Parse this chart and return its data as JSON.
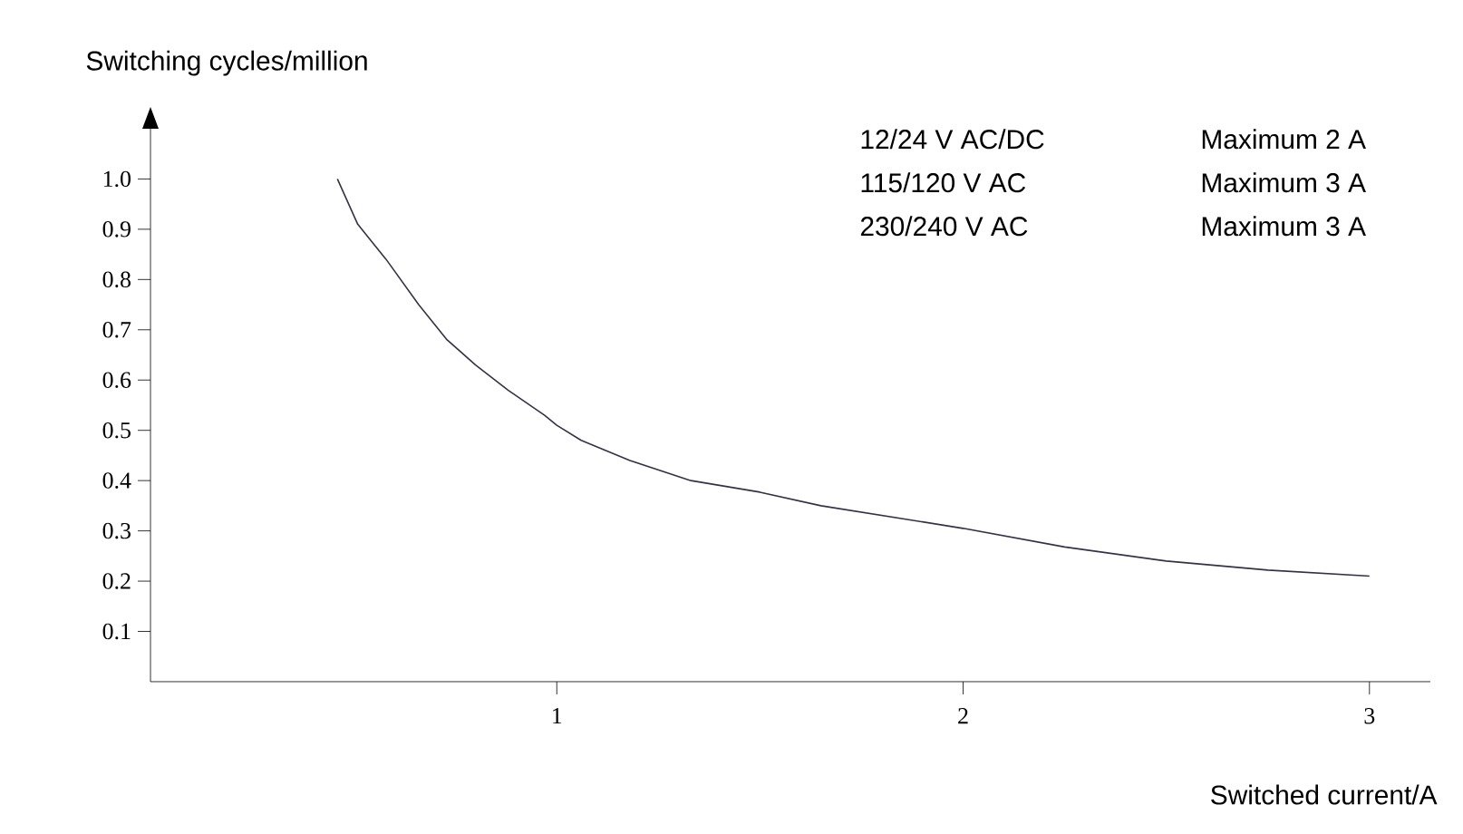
{
  "chart_data": {
    "type": "line",
    "xlabel": "Switched current/A",
    "ylabel": "Switching cycles/million",
    "annotations": [
      "12/24 V AC/DC",
      "Maximum 2 A",
      "115/120 V AC",
      "Maximum 3 A",
      "230/240 V AC",
      "Maximum 3 A"
    ],
    "series": [
      {
        "color": "#333344",
        "x": [
          0.46,
          0.51,
          0.58,
          0.66,
          0.73,
          0.8,
          0.88,
          0.97,
          1.0,
          1.06,
          1.18,
          1.33,
          1.5,
          1.65,
          2.0,
          2.25,
          2.5,
          2.75,
          3.0
        ],
        "values": [
          1.0,
          0.91,
          0.84,
          0.75,
          0.68,
          0.63,
          0.58,
          0.53,
          0.51,
          0.48,
          0.44,
          0.4,
          0.377,
          0.35,
          0.305,
          0.268,
          0.24,
          0.222,
          0.21
        ]
      }
    ],
    "xlim": [
      0,
      3.15
    ],
    "xticks": [
      1,
      2,
      3
    ],
    "ylim": [
      0,
      1.1
    ],
    "yticks": [
      0.1,
      0.2,
      0.3,
      0.4,
      0.5,
      0.6,
      0.7,
      0.8,
      0.9,
      {
        "value": 1.0,
        "label": "1.0"
      }
    ]
  }
}
